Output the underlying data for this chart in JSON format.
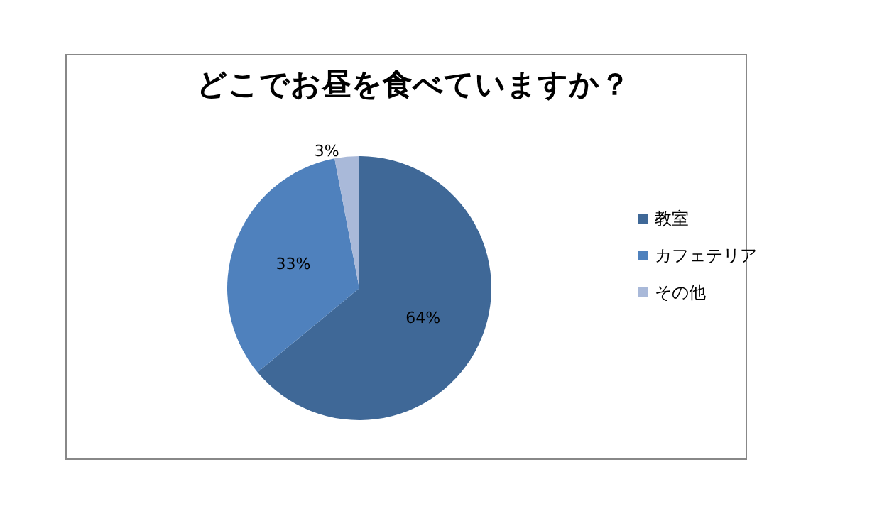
{
  "chart_data": {
    "type": "pie",
    "title": "どこでお昼を食べていますか？",
    "categories": [
      "教室",
      "カフェテリア",
      "その他"
    ],
    "values": [
      64,
      33,
      3
    ],
    "value_labels": [
      "64%",
      "33%",
      "3%"
    ],
    "colors": [
      "#3f6897",
      "#4f81bd",
      "#a9b9d9"
    ],
    "legend": "right"
  }
}
